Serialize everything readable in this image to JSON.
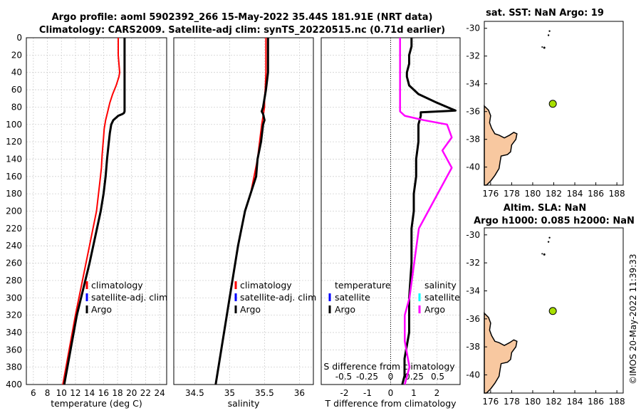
{
  "header": {
    "line1": "Argo profile: aoml 5902392_266 15-May-2022 35.44S 181.91E (NRT data)",
    "line2": "Climatology: CARS2009. Satellite-adj clim: synTS_20220515.nc (0.71d earlier)"
  },
  "depth_axis": {
    "ylim": [
      0,
      400
    ],
    "ticks": [
      "0",
      "20",
      "40",
      "60",
      "80",
      "100",
      "120",
      "140",
      "160",
      "180",
      "200",
      "220",
      "240",
      "260",
      "280",
      "300",
      "320",
      "340",
      "360",
      "380",
      "400"
    ]
  },
  "colors": {
    "climatology": "#ff0000",
    "satellite": "#0000ff",
    "argo": "#000000",
    "sal_diff": "#ff00ff",
    "sat_cyan": "#00ffff",
    "land": "#f8c8a0",
    "float": "#a8e000"
  },
  "chart_data": [
    {
      "type": "line",
      "id": "temperature",
      "xlabel": "temperature (deg C)",
      "xlim": [
        5,
        25
      ],
      "xticks": [
        "6",
        "8",
        "10",
        "12",
        "14",
        "16",
        "18",
        "20",
        "22",
        "24"
      ],
      "legend": [
        "climatology",
        "satellite-adj. clim",
        "Argo"
      ],
      "series": [
        {
          "name": "climatology",
          "x": [
            18.1,
            18.1,
            18.1,
            18.2,
            18.3,
            18.2,
            17.8,
            17.3,
            16.9,
            16.6,
            16.3,
            16.1,
            16.0,
            15.9,
            15.8,
            15.7,
            15.5,
            15.0,
            13.5,
            12.0,
            10.2
          ],
          "y": [
            0,
            10,
            20,
            30,
            40,
            45,
            55,
            65,
            75,
            85,
            95,
            105,
            115,
            125,
            135,
            150,
            165,
            200,
            260,
            320,
            400
          ]
        },
        {
          "name": "Argo",
          "x": [
            19.0,
            19.0,
            19.0,
            19.0,
            19.0,
            19.0,
            19.0,
            19.0,
            19.0,
            19.0,
            18.9,
            18.7,
            18.1,
            17.4,
            17.1,
            16.9,
            16.7,
            16.5,
            16.3,
            16.0,
            15.6,
            14.0,
            12.2,
            10.4
          ],
          "y": [
            0,
            10,
            20,
            30,
            40,
            50,
            60,
            70,
            80,
            85,
            87,
            88,
            90,
            95,
            100,
            110,
            125,
            140,
            160,
            180,
            200,
            260,
            320,
            400
          ]
        }
      ]
    },
    {
      "type": "line",
      "id": "salinity",
      "xlabel": "salinity",
      "xlim": [
        34.2,
        36.2
      ],
      "xticks": [
        "34.5",
        "35",
        "35.5",
        "36"
      ],
      "legend": [
        "climatology",
        "satellite-adj. clim",
        "Argo"
      ],
      "series": [
        {
          "name": "climatology",
          "x": [
            35.52,
            35.52,
            35.52,
            35.51,
            35.5,
            35.5,
            35.48,
            35.46,
            35.43,
            35.4,
            35.35,
            35.3,
            35.22,
            35.12,
            35.0,
            34.8
          ],
          "y": [
            0,
            20,
            40,
            60,
            70,
            80,
            90,
            100,
            120,
            140,
            160,
            180,
            200,
            240,
            300,
            400
          ]
        },
        {
          "name": "Argo",
          "x": [
            35.55,
            35.55,
            35.55,
            35.52,
            35.5,
            35.48,
            35.46,
            35.48,
            35.5,
            35.48,
            35.45,
            35.4,
            35.38,
            35.3,
            35.22,
            35.12,
            35.0,
            34.8
          ],
          "y": [
            0,
            20,
            40,
            60,
            70,
            80,
            85,
            88,
            95,
            100,
            120,
            140,
            160,
            180,
            200,
            240,
            300,
            400
          ]
        }
      ]
    },
    {
      "type": "line",
      "id": "differences",
      "xlabel": "T difference from climatology",
      "xlim": [
        -3,
        3
      ],
      "xticks": [
        "-2",
        "-1",
        "0",
        "1",
        "2"
      ],
      "top_label": "S difference from climatology",
      "top_ticks": [
        "-0.5",
        "-0.25",
        "0",
        "0.25",
        "0.5"
      ],
      "legend_left": [
        "temperature",
        "satellite",
        "Argo"
      ],
      "legend_right": [
        "salinity",
        "satellite",
        "Argo"
      ],
      "series": [
        {
          "name": "T difference (Argo)",
          "x": [
            0.9,
            0.9,
            0.8,
            0.8,
            0.7,
            0.7,
            0.8,
            1.2,
            2.0,
            2.8,
            1.3,
            1.3,
            1.2,
            1.2,
            1.1,
            1.1,
            1.0,
            1.0,
            0.9,
            0.9,
            0.8,
            0.8,
            0.6,
            0.6,
            0.5
          ],
          "y": [
            0,
            10,
            20,
            30,
            40,
            45,
            55,
            65,
            75,
            84,
            86,
            90,
            100,
            120,
            140,
            160,
            180,
            200,
            220,
            260,
            300,
            340,
            370,
            390,
            400
          ]
        },
        {
          "name": "S difference (Argo)",
          "x": [
            0.1,
            0.1,
            0.1,
            0.1,
            0.1,
            0.1,
            0.1,
            0.15,
            0.35,
            0.6,
            0.65,
            0.55,
            0.65,
            0.5,
            0.4,
            0.3,
            0.25,
            0.2,
            0.15,
            0.15,
            0.2,
            0.15
          ],
          "y": [
            0,
            20,
            40,
            60,
            70,
            80,
            85,
            90,
            95,
            100,
            115,
            130,
            150,
            180,
            200,
            220,
            260,
            300,
            320,
            350,
            380,
            400
          ]
        }
      ]
    }
  ],
  "map_top": {
    "title": "sat. SST: NaN Argo: 19",
    "yticks": [
      "-30",
      "-32",
      "-34",
      "-36",
      "-38",
      "-40"
    ],
    "xticks": [
      "176",
      "178",
      "180",
      "182",
      "184",
      "186",
      "188"
    ],
    "float_lon": 181.91,
    "float_lat": -35.44
  },
  "map_bottom": {
    "title_line1": "Altim. SLA: NaN",
    "title_line2": "Argo h1000: 0.085 h2000: NaN",
    "yticks": [
      "-30",
      "-32",
      "-34",
      "-36",
      "-38",
      "-40"
    ],
    "xticks": [
      "176",
      "178",
      "180",
      "182",
      "184",
      "186",
      "188"
    ],
    "float_lon": 181.91,
    "float_lat": -35.44
  },
  "footer": "©IMOS 20-May-2022 11:39:33"
}
